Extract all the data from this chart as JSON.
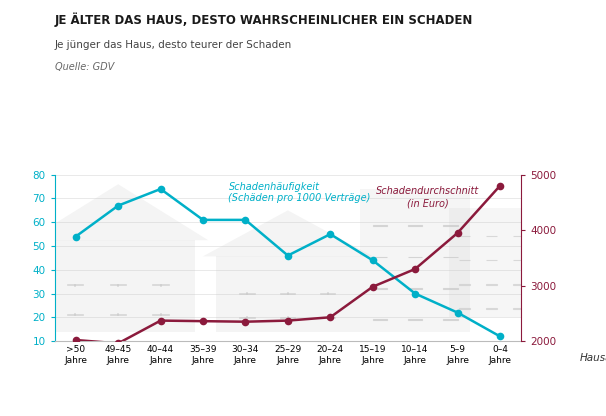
{
  "categories": [
    ">50\nJahre",
    "49–45\nJahre",
    "40–44\nJahre",
    "35–39\nJahre",
    "30–34\nJahre",
    "25–29\nJahre",
    "20–24\nJahre",
    "15–19\nJahre",
    "10–14\nJahre",
    "5–9\nJahre",
    "0–4\nJahre"
  ],
  "haeufigkeit": [
    54,
    67,
    74,
    61,
    61,
    46,
    55,
    44,
    30,
    22,
    12
  ],
  "durchschnitt_right": [
    2020,
    1960,
    2370,
    2360,
    2350,
    2370,
    2430,
    2980,
    3300,
    3950,
    4800
  ],
  "title": "JE ÄLTER DAS HAUS, DESTO WAHRSCHEINLICHER EIN SCHADEN",
  "subtitle": "Je jünger das Haus, desto teurer der Schaden",
  "source": "Quelle: GDV",
  "label_haeufigkeit": "Schadenhäufigkeit\n(Schäden pro 1000 Verträge)",
  "label_durchschnitt": "Schadendurchschnitt\n(in Euro)",
  "xlabel": "Hausalter",
  "color_haeufigkeit": "#00b0c8",
  "color_durchschnitt": "#8b1a3c",
  "background_color": "#ffffff",
  "ylim_left": [
    10,
    80
  ],
  "ylim_right": [
    2000,
    5000
  ],
  "yticks_left": [
    10,
    20,
    30,
    40,
    50,
    60,
    70,
    80
  ],
  "yticks_right": [
    2000,
    3000,
    4000,
    5000
  ]
}
